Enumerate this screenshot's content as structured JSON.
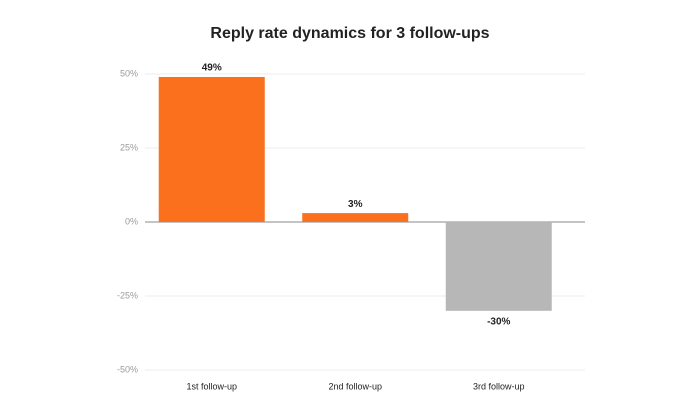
{
  "chart_data": {
    "type": "bar",
    "title": "Reply rate dynamics for 3 follow-ups",
    "categories": [
      "1st follow-up",
      "2nd follow-up",
      "3rd follow-up"
    ],
    "values": [
      49,
      3,
      -30
    ],
    "value_labels": [
      "49%",
      "3%",
      "-30%"
    ],
    "colors": [
      "#fa701c",
      "#fa701c",
      "#b7b7b7"
    ],
    "ylim": [
      -50,
      50
    ],
    "yticks": [
      {
        "value": -50,
        "label": "-50%"
      },
      {
        "value": -25,
        "label": "-25%"
      },
      {
        "value": 0,
        "label": "0%"
      },
      {
        "value": 25,
        "label": "25%"
      },
      {
        "value": 50,
        "label": "50%"
      }
    ],
    "grid": true
  }
}
